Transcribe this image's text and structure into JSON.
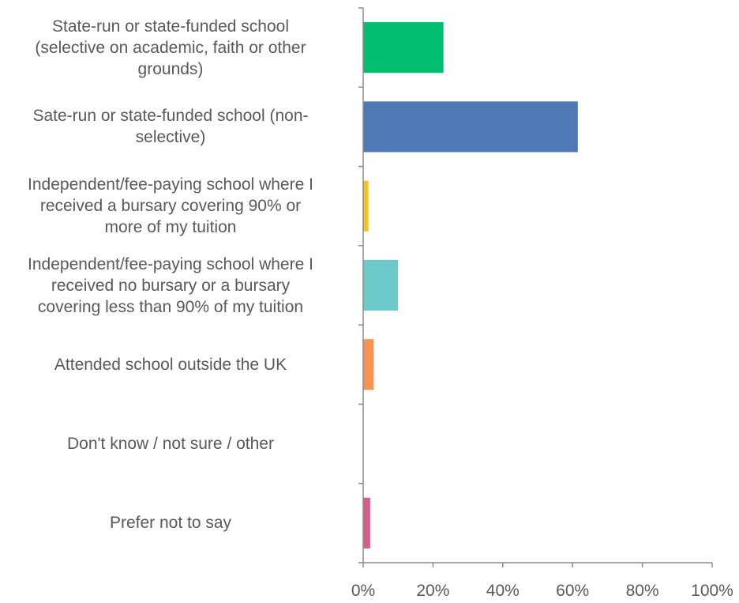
{
  "chart_data": {
    "type": "bar",
    "orientation": "horizontal",
    "title": "",
    "xlabel": "",
    "ylabel": "",
    "categories": [
      "State-run or state-funded school (selective on academic, faith or other grounds)",
      "Sate-run or state-funded school (non-selective)",
      "Independent/fee-paying school where I received a bursary covering 90% or more of my tuition",
      "Independent/fee-paying school where I received no bursary or a bursary covering less than 90% of my tuition",
      "Attended school outside the UK",
      "Don't know / not sure / other",
      "Prefer not to say"
    ],
    "category_lines": [
      [
        "State-run or state-funded school",
        "(selective on academic, faith or other",
        "grounds)"
      ],
      [
        "Sate-run or state-funded school (non-",
        "selective)"
      ],
      [
        "Independent/fee-paying school where I",
        "received a bursary covering 90% or",
        "more of my tuition"
      ],
      [
        "Independent/fee-paying school where I",
        "received no bursary or a bursary",
        "covering less than 90% of my tuition"
      ],
      [
        "Attended school outside the UK"
      ],
      [
        "Don't know / not sure / other"
      ],
      [
        "Prefer not to say"
      ]
    ],
    "values": [
      23,
      61.5,
      1.5,
      10,
      3,
      0,
      2
    ],
    "colors": [
      "#00c070",
      "#4e79b4",
      "#f7c21d",
      "#6ccacb",
      "#f89352",
      "#cccccc",
      "#d75b8d"
    ],
    "xlim": [
      0,
      100
    ],
    "x_ticks": [
      "0%",
      "20%",
      "40%",
      "60%",
      "80%",
      "100%"
    ],
    "x_tick_values": [
      0,
      20,
      40,
      60,
      80,
      100
    ],
    "grid": false,
    "legend": "none"
  }
}
